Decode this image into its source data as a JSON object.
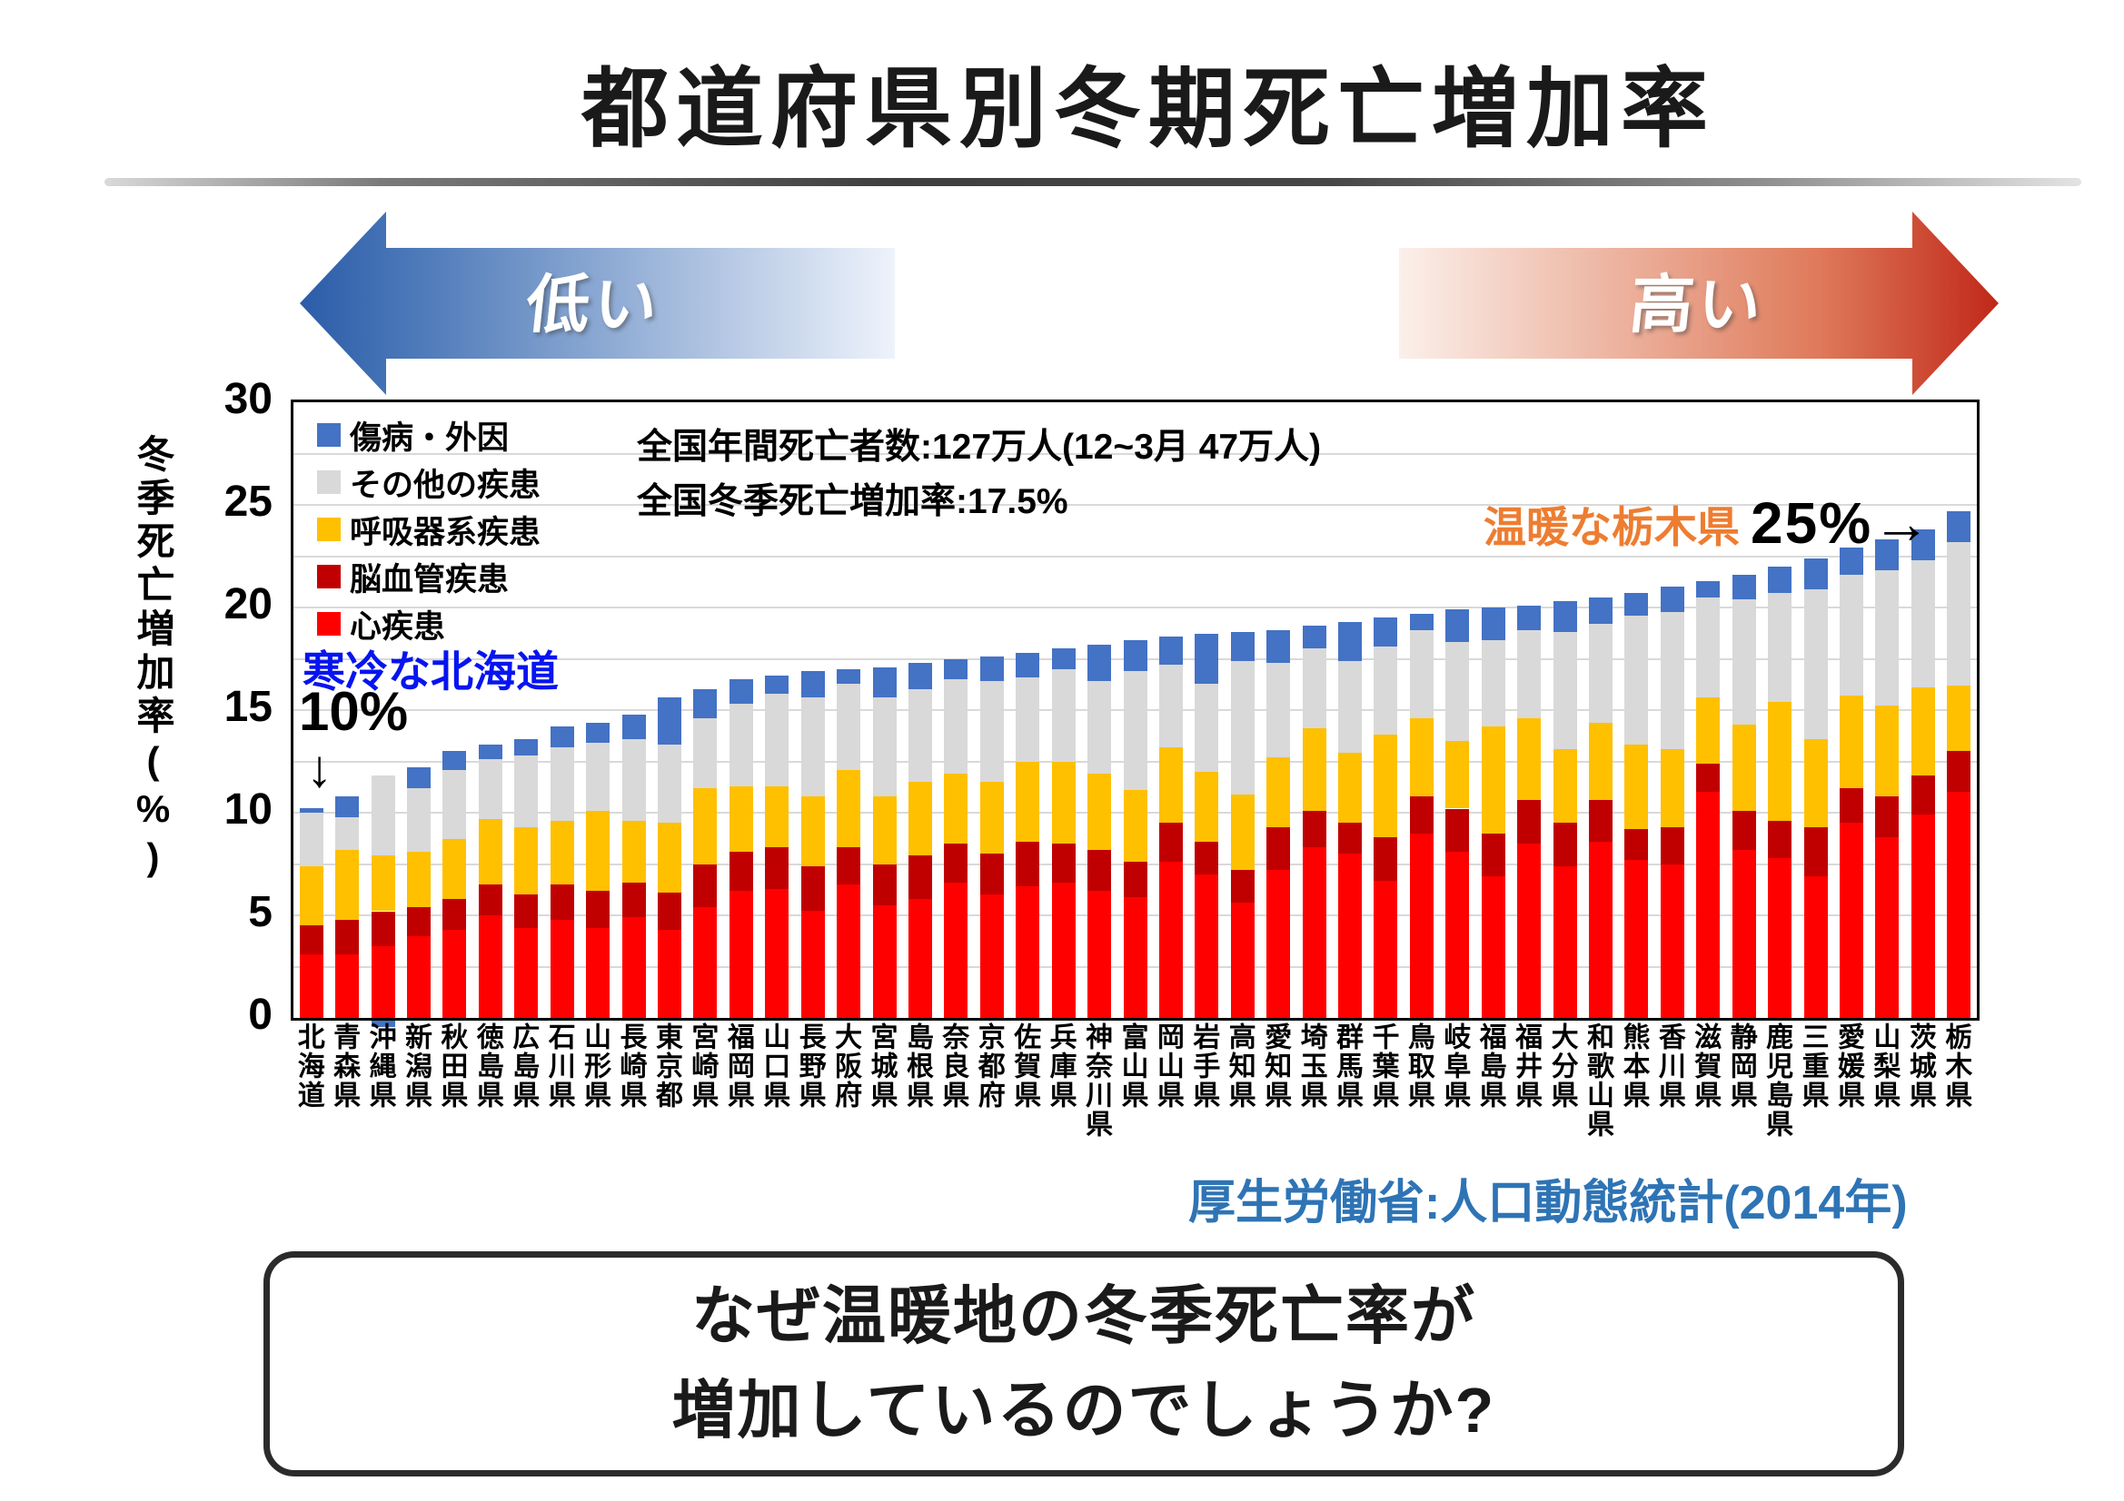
{
  "title": "都道府県別冬期死亡増加率",
  "arrows": {
    "low_label": "低い",
    "high_label": "高い"
  },
  "chart_data": {
    "type": "bar",
    "stacked": true,
    "ylabel": "冬季死亡増加率(%)",
    "ylim": [
      0,
      30
    ],
    "y_tick_interval": 5,
    "grid_interval": 2.5,
    "grid": "on",
    "legend_position": "top-left-inside",
    "categories": [
      "北海道",
      "青森県",
      "沖縄県",
      "新潟県",
      "秋田県",
      "徳島県",
      "広島県",
      "石川県",
      "山形県",
      "長崎県",
      "東京都",
      "宮崎県",
      "福岡県",
      "山口県",
      "長野県",
      "大阪府",
      "宮城県",
      "島根県",
      "奈良県",
      "京都府",
      "佐賀県",
      "兵庫県",
      "神奈川県",
      "富山県",
      "岡山県",
      "岩手県",
      "高知県",
      "愛知県",
      "埼玉県",
      "群馬県",
      "千葉県",
      "鳥取県",
      "岐阜県",
      "福島県",
      "福井県",
      "大分県",
      "和歌山県",
      "熊本県",
      "香川県",
      "滋賀県",
      "静岡県",
      "鹿児島県",
      "三重県",
      "愛媛県",
      "山梨県",
      "茨城県",
      "栃木県"
    ],
    "series": [
      {
        "name": "心疾患",
        "color": "#ff0000",
        "values": [
          3.1,
          3.1,
          3.5,
          4.0,
          4.3,
          5.0,
          4.4,
          4.8,
          4.4,
          4.9,
          4.3,
          5.4,
          6.2,
          6.3,
          5.2,
          6.5,
          5.5,
          5.8,
          6.6,
          6.0,
          6.4,
          6.6,
          6.2,
          5.9,
          7.6,
          7.0,
          5.6,
          7.2,
          8.3,
          8.0,
          6.7,
          9.0,
          8.1,
          6.9,
          8.5,
          7.4,
          8.6,
          7.7,
          7.5,
          11.0,
          8.2,
          7.8,
          6.9,
          9.5,
          8.8,
          9.9,
          11.0
        ]
      },
      {
        "name": "脳血管疾患",
        "color": "#c00000",
        "values": [
          1.4,
          1.7,
          1.7,
          1.4,
          1.5,
          1.5,
          1.6,
          1.7,
          1.8,
          1.7,
          1.8,
          2.1,
          1.9,
          2.0,
          2.2,
          1.8,
          2.0,
          2.1,
          1.9,
          2.0,
          2.2,
          1.9,
          2.0,
          1.7,
          1.9,
          1.6,
          1.6,
          2.1,
          1.8,
          1.5,
          2.1,
          1.8,
          2.1,
          2.1,
          2.1,
          2.1,
          2.0,
          1.5,
          1.8,
          1.4,
          1.9,
          1.8,
          2.4,
          1.7,
          2.0,
          1.9,
          2.0
        ]
      },
      {
        "name": "呼吸器系疾患",
        "color": "#ffc000",
        "values": [
          2.9,
          3.4,
          2.7,
          2.7,
          2.9,
          3.2,
          3.3,
          3.1,
          3.9,
          3.0,
          3.4,
          3.7,
          3.2,
          3.0,
          3.4,
          3.8,
          3.3,
          3.6,
          3.4,
          3.5,
          3.9,
          4.0,
          3.7,
          3.5,
          3.7,
          3.4,
          3.7,
          3.4,
          4.0,
          3.4,
          5.0,
          3.8,
          3.3,
          5.2,
          4.0,
          3.6,
          3.8,
          4.1,
          3.8,
          3.2,
          4.2,
          5.8,
          4.3,
          4.5,
          4.4,
          4.3,
          3.2
        ]
      },
      {
        "name": "その他の疾患",
        "color": "#d9d9d9",
        "values": [
          2.6,
          1.6,
          3.9,
          3.1,
          3.4,
          2.9,
          3.5,
          3.6,
          3.3,
          4.0,
          3.8,
          3.4,
          4.0,
          4.5,
          4.8,
          4.2,
          4.8,
          4.5,
          4.6,
          4.9,
          4.1,
          4.5,
          4.5,
          5.8,
          4.0,
          4.3,
          6.5,
          4.6,
          3.9,
          4.5,
          4.3,
          4.3,
          4.8,
          4.2,
          4.3,
          5.7,
          4.8,
          6.3,
          6.7,
          4.9,
          6.1,
          5.3,
          7.3,
          5.9,
          6.6,
          6.2,
          7.0
        ]
      },
      {
        "name": "傷病・外因",
        "color": "#4472c4",
        "values": [
          0.2,
          1.0,
          -0.3,
          1.0,
          0.9,
          0.7,
          0.8,
          1.0,
          1.0,
          1.2,
          2.3,
          1.4,
          1.2,
          0.9,
          1.3,
          0.7,
          1.5,
          1.3,
          1.0,
          1.2,
          1.2,
          1.0,
          1.8,
          1.5,
          1.4,
          2.4,
          1.4,
          1.6,
          1.1,
          1.9,
          1.4,
          0.8,
          1.6,
          1.6,
          1.2,
          1.5,
          1.3,
          1.1,
          1.2,
          0.8,
          1.2,
          1.3,
          1.5,
          1.3,
          1.5,
          1.5,
          1.5
        ]
      }
    ],
    "annotations": {
      "note1": "全国年間死亡者数:127万人(12~3月 47万人)",
      "note2": "全国冬季死亡増加率:17.5%",
      "cold_text": "寒冷な北海道",
      "cold_value": "10%",
      "cold_arrow": "↓",
      "warm_text": "温暖な栃木県",
      "warm_value": "25%→"
    }
  },
  "source": "厚生労働省:人口動態統計(2014年)",
  "question_box": {
    "line1": "なぜ温暖地の冬季死亡率が",
    "line2": "増加しているのでしょうか?"
  },
  "colors": {
    "arrow_low_dark": "#2b5ca8",
    "arrow_low_light": "#eef3fb",
    "arrow_high_dark": "#c02818",
    "arrow_high_light": "#fbf0ea",
    "cold_text_color": "#0614f0",
    "warm_text_color": "#ed7d31",
    "source_color": "#2e74b5"
  }
}
